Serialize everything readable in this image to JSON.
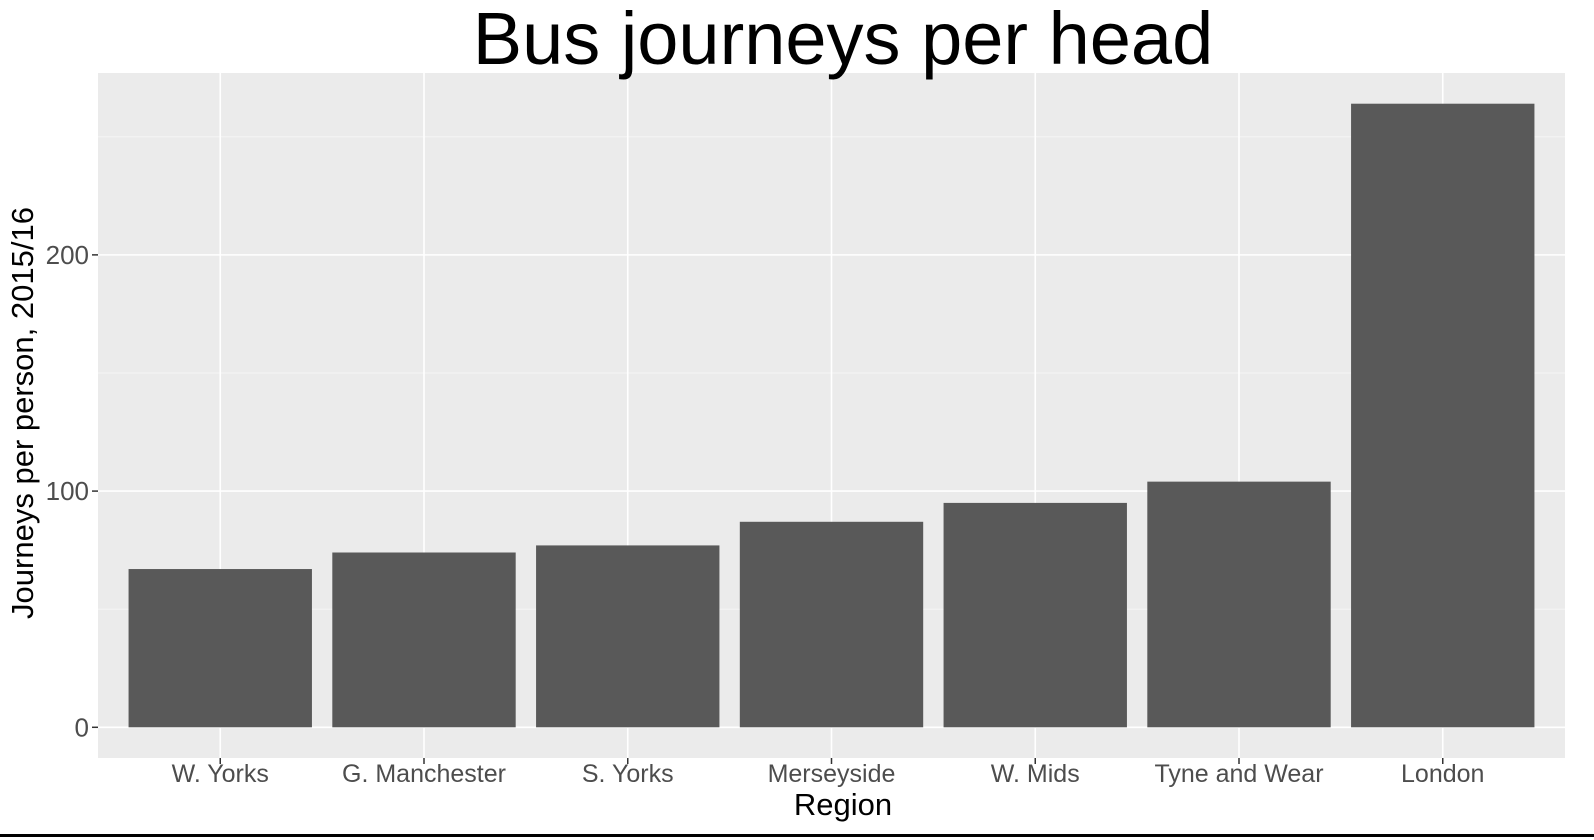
{
  "chart_data": {
    "type": "bar",
    "title": "Bus journeys per head",
    "xlabel": "Region",
    "ylabel": "Journeys per person, 2015/16",
    "categories": [
      "W. Yorks",
      "G. Manchester",
      "S. Yorks",
      "Merseyside",
      "W. Mids",
      "Tyne and Wear",
      "London"
    ],
    "values": [
      67,
      74,
      77,
      87,
      95,
      104,
      264
    ],
    "ylim": [
      -13,
      277
    ],
    "yticks": [
      0,
      100,
      200
    ],
    "grid": true,
    "legend": "none",
    "colors": {
      "bar": "#595959",
      "panel": "#ebebeb",
      "grid_major": "#ffffff",
      "grid_minor": "#f5f5f5",
      "tick_text": "#4d4d4d"
    }
  }
}
